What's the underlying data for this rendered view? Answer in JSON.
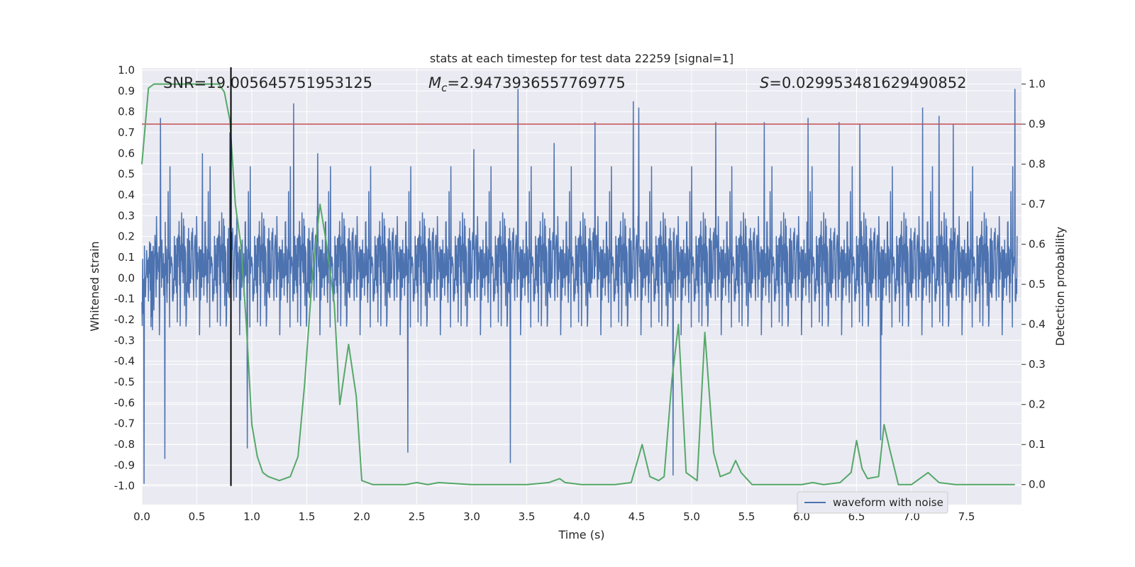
{
  "chart_data": {
    "type": "line",
    "title": "stats at each timestep for test data 22259 [signal=1]",
    "xlabel": "Time (s)",
    "ylabel_left": "Whitened strain",
    "ylabel_right": "Detection probability",
    "xlim": [
      0.0,
      8.0
    ],
    "ylim_left": [
      -1.09,
      1.01
    ],
    "ylim_right": [
      -0.05,
      1.04
    ],
    "x_ticks": [
      "0.0",
      "0.5",
      "1.0",
      "1.5",
      "2.0",
      "2.5",
      "3.0",
      "3.5",
      "4.0",
      "4.5",
      "5.0",
      "5.5",
      "6.0",
      "6.5",
      "7.0",
      "7.5"
    ],
    "y_left_ticks": [
      "1.0",
      "0.9",
      "0.8",
      "0.7",
      "0.6",
      "0.5",
      "0.4",
      "0.3",
      "0.2",
      "0.1",
      "0.0",
      "-0.1",
      "-0.2",
      "-0.3",
      "-0.4",
      "-0.5",
      "-0.6",
      "-0.7",
      "-0.8",
      "-0.9",
      "-1.0"
    ],
    "y_right_ticks": [
      "1.0",
      "0.9",
      "0.8",
      "0.7",
      "0.6",
      "0.5",
      "0.4",
      "0.3",
      "0.2",
      "0.1",
      "0.0"
    ],
    "grid": true,
    "legend": {
      "placement": "lower-right",
      "entries": [
        "waveform with noise"
      ]
    },
    "annotations": {
      "snr": "SNR=19.005645751953125",
      "mc_symbol": "M",
      "mc_sub": "c",
      "mc_value": "=2.9473936557769775",
      "s_symbol": "S",
      "s_value": "=0.029953481629490852"
    },
    "threshold_probability": 0.9,
    "marker_time": 0.81,
    "colors": {
      "waveform": "#4c72b0",
      "probability": "#55a868",
      "threshold": "#c44e52",
      "marker": "#000000",
      "background": "#eaeaf2",
      "grid": "#ffffff"
    },
    "series": [
      {
        "name": "waveform with noise",
        "axis": "left",
        "style": "dense noise waveform, envelope approx -0.5 to 0.5 with peaks to 0.9 and -1.0",
        "peaks_up": [
          [
            0.17,
            0.77
          ],
          [
            0.55,
            0.6
          ],
          [
            0.8,
            0.7
          ],
          [
            1.38,
            0.84
          ],
          [
            1.6,
            0.6
          ],
          [
            3.02,
            0.62
          ],
          [
            3.42,
            0.91
          ],
          [
            3.75,
            0.65
          ],
          [
            4.12,
            0.75
          ],
          [
            4.47,
            0.85
          ],
          [
            4.52,
            0.82
          ],
          [
            5.22,
            0.75
          ],
          [
            5.66,
            0.75
          ],
          [
            6.06,
            0.77
          ],
          [
            6.34,
            0.75
          ],
          [
            6.53,
            0.74
          ],
          [
            7.1,
            0.82
          ],
          [
            7.25,
            0.78
          ],
          [
            7.38,
            0.74
          ],
          [
            7.94,
            0.91
          ]
        ],
        "peaks_down": [
          [
            0.02,
            -0.99
          ],
          [
            0.21,
            -0.87
          ],
          [
            0.96,
            -0.82
          ],
          [
            2.42,
            -0.84
          ],
          [
            3.35,
            -0.89
          ],
          [
            4.83,
            -0.95
          ],
          [
            6.72,
            -0.78
          ]
        ]
      },
      {
        "name": "",
        "axis": "right",
        "x": [
          0.0,
          0.06,
          0.11,
          0.2,
          0.4,
          0.6,
          0.7,
          0.75,
          0.8,
          0.85,
          0.9,
          0.95,
          1.0,
          1.05,
          1.1,
          1.15,
          1.25,
          1.35,
          1.42,
          1.48,
          1.55,
          1.62,
          1.68,
          1.75,
          1.8,
          1.88,
          1.95,
          2.0,
          2.1,
          2.4,
          2.5,
          2.6,
          2.7,
          3.0,
          3.5,
          3.7,
          3.8,
          3.85,
          4.0,
          4.3,
          4.45,
          4.55,
          4.62,
          4.7,
          4.75,
          4.82,
          4.88,
          4.95,
          5.05,
          5.12,
          5.2,
          5.26,
          5.35,
          5.4,
          5.45,
          5.55,
          5.7,
          6.0,
          6.1,
          6.2,
          6.35,
          6.45,
          6.5,
          6.55,
          6.6,
          6.7,
          6.75,
          6.8,
          6.88,
          6.95,
          7.0,
          7.1,
          7.15,
          7.25,
          7.4,
          7.94
        ],
        "y": [
          0.8,
          0.99,
          1.0,
          1.0,
          1.0,
          1.0,
          1.0,
          0.98,
          0.91,
          0.7,
          0.6,
          0.4,
          0.15,
          0.07,
          0.03,
          0.02,
          0.01,
          0.02,
          0.07,
          0.25,
          0.52,
          0.7,
          0.6,
          0.45,
          0.2,
          0.35,
          0.22,
          0.01,
          0.0,
          0.0,
          0.005,
          0.0,
          0.005,
          0.0,
          0.0,
          0.005,
          0.015,
          0.005,
          0.0,
          0.0,
          0.005,
          0.1,
          0.02,
          0.01,
          0.02,
          0.26,
          0.4,
          0.03,
          0.01,
          0.38,
          0.08,
          0.02,
          0.03,
          0.06,
          0.03,
          0.0,
          0.0,
          0.0,
          0.005,
          0.0,
          0.005,
          0.03,
          0.11,
          0.04,
          0.015,
          0.02,
          0.15,
          0.09,
          0.0,
          0.0,
          0.0,
          0.02,
          0.03,
          0.005,
          0.0,
          0.0
        ]
      }
    ]
  }
}
